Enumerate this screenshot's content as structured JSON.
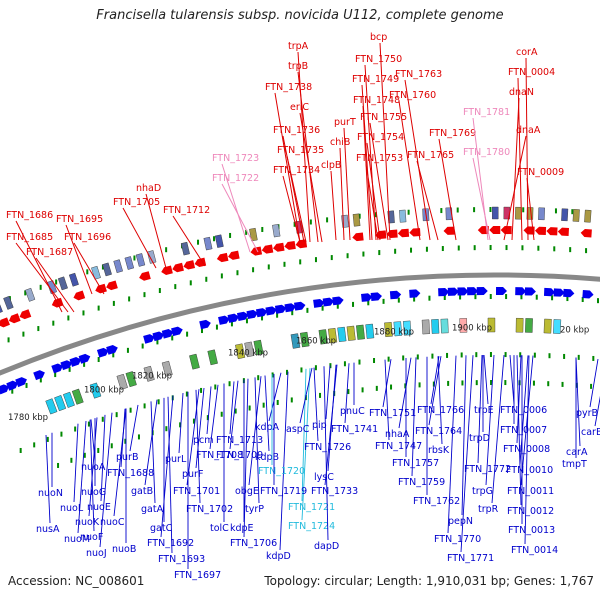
{
  "title": "Francisella tularensis subsp. novicida U112, complete genome",
  "accession": "Accession: NC_008601",
  "topology": "Topology: circular; Length: 1,910,031 bp; Genes: 1,767",
  "colors": {
    "upper_label": "#dd0000",
    "upper_pink": "#ee88bb",
    "lower_label": "#0000cc",
    "lower_cyan": "#22bbdd",
    "backbone": "#888888",
    "tick_marks": "#008800",
    "forward_arrows": "#ee0000",
    "reverse_arrows": "#0000ee"
  },
  "ticks": [
    "1780 kbp",
    "1800 kbp",
    "1820 kbp",
    "1840 kbp",
    "1860 kbp",
    "1880 kbp",
    "1900 kbp",
    "20 kbp"
  ],
  "upper_genes": [
    "FTN_1686",
    "FTN_1685",
    "FTN_1687",
    "FTN_1695",
    "FTN_1696",
    "nhaD",
    "FTN_1705",
    "FTN_1712",
    "FTN_1723",
    "FTN_1722",
    "trpA",
    "trpB",
    "FTN_1738",
    "eriC",
    "FTN_1736",
    "FTN_1735",
    "FTN_1734",
    "FTN_1750",
    "FTN_1749",
    "FTN_1748",
    "purT",
    "chiB",
    "clpB",
    "bcp",
    "FTN_1755",
    "FTN_1754",
    "FTN_1753",
    "FTN_1763",
    "FTN_1760",
    "FTN_1765",
    "FTN_1769",
    "FTN_1781",
    "FTN_1780",
    "corA",
    "FTN_0004",
    "dnaN",
    "dnaA",
    "FTN_0009"
  ],
  "lower_genes": [
    "nusA",
    "nuoN",
    "nuoL",
    "nuoM",
    "nuoJ",
    "nuoA",
    "nuoG",
    "nuoE",
    "nuoK",
    "nuoC",
    "nuoF",
    "nuoB",
    "FTN_1688",
    "purB",
    "gatB",
    "gatA",
    "gatC",
    "purL",
    "purF",
    "FTN_1692",
    "FTN_1693",
    "FTN_1697",
    "pcm",
    "FTN_1708",
    "FTN_1701",
    "FTN_1702",
    "tolC",
    "FTN_1713",
    "FTN_1709",
    "obgE",
    "tyrP",
    "kdpE",
    "FTN_1706",
    "kdpD",
    "kdpA",
    "kdpB",
    "FTN_1720",
    "FTN_1721",
    "FTN_1724",
    "aspC",
    "FTN_1726",
    "FTN_1719",
    "pip",
    "lysC",
    "FTN_1733",
    "dapD",
    "pnuC",
    "FTN_1741",
    "FTN_1751",
    "nhaA",
    "FTN_1747",
    "FTN_1757",
    "FTN_1759",
    "FTN_1766",
    "FTN_1764",
    "rbsK",
    "FTN_1762",
    "pepN",
    "FTN_1770",
    "FTN_1771",
    "trpE",
    "trpD",
    "FTN_1772",
    "trpG",
    "trpR",
    "FTN_0006",
    "FTN_0007",
    "FTN_0008",
    "FTN_0010",
    "FTN_0011",
    "FTN_0012",
    "FTN_0013",
    "FTN_0014",
    "pyrB",
    "carB",
    "carA",
    "tmpT"
  ]
}
